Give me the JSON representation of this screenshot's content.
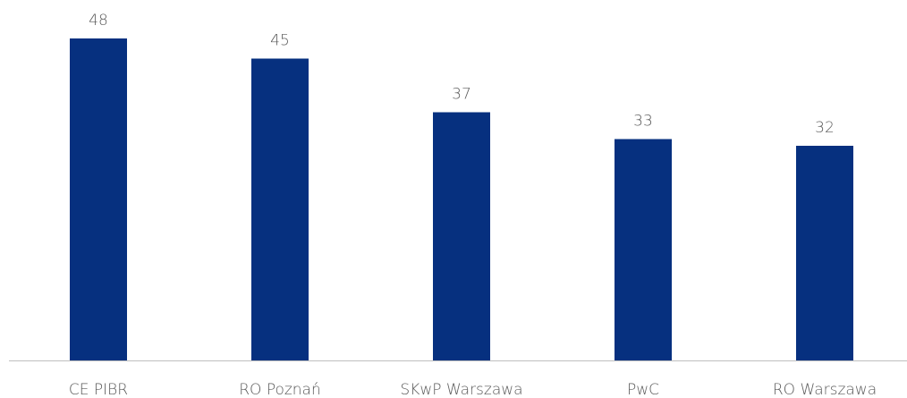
{
  "chart_data": {
    "type": "bar",
    "categories": [
      "CE PIBR",
      "RO Poznań",
      "SKwP Warszawa",
      "PwC",
      "RO Warszawa"
    ],
    "values": [
      48,
      45,
      37,
      33,
      32
    ],
    "color": "#06307f"
  }
}
